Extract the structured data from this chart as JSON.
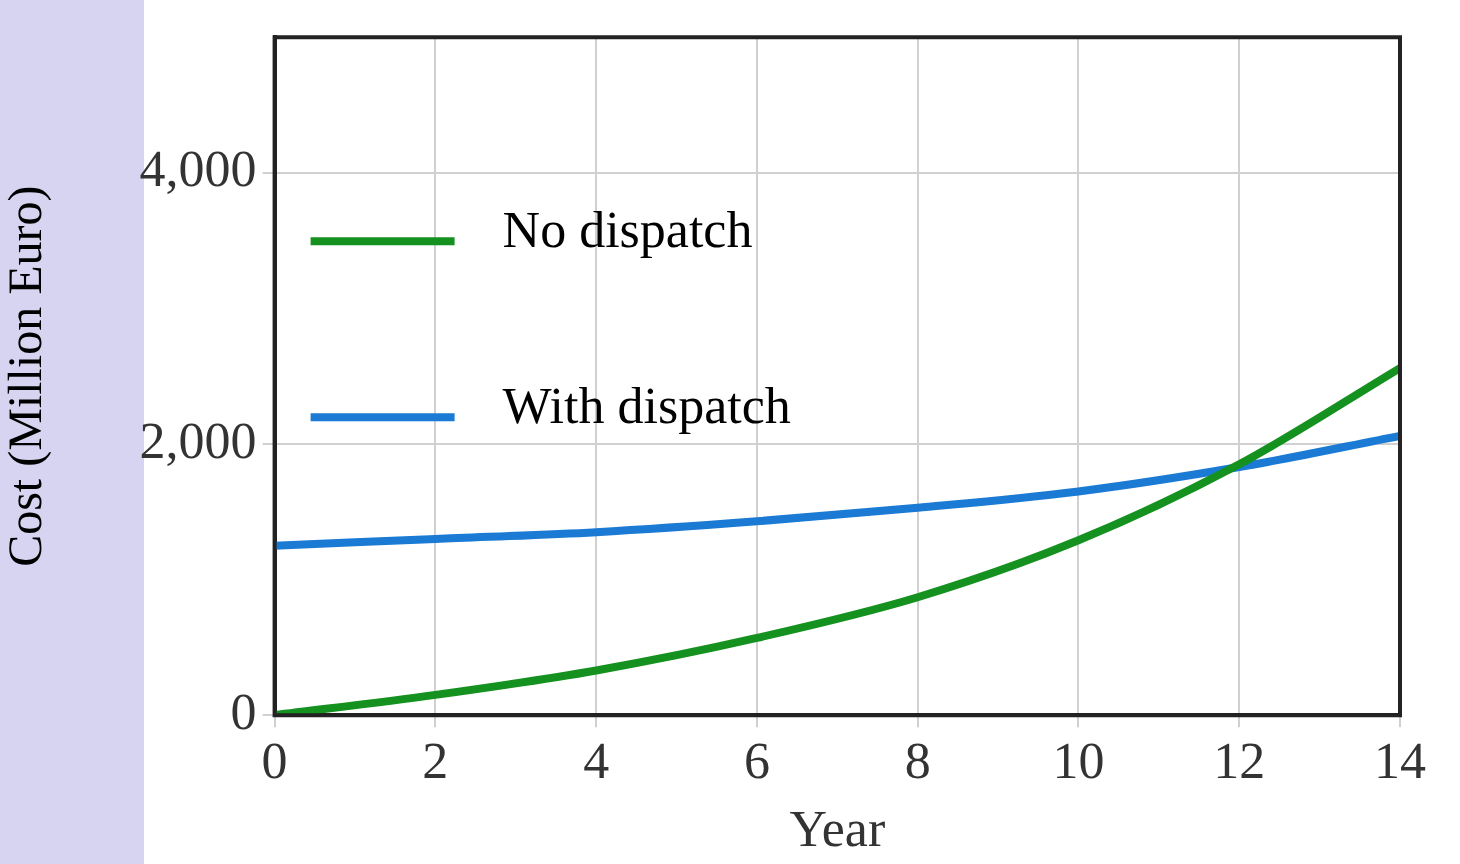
{
  "chart_data": {
    "type": "line",
    "xlabel": "Year",
    "ylabel": "Cost (Million Euro)",
    "x": [
      0,
      2,
      4,
      6,
      8,
      10,
      12,
      14
    ],
    "series": [
      {
        "name": "No dispatch",
        "color": "#14911e",
        "values": [
          0,
          150,
          330,
          570,
          870,
          1290,
          1850,
          2560
        ]
      },
      {
        "name": "With dispatch",
        "color": "#1a7ad4",
        "values": [
          1250,
          1300,
          1350,
          1430,
          1530,
          1650,
          1830,
          2060
        ]
      }
    ],
    "xlim": [
      0,
      14
    ],
    "xticks": [
      0,
      2,
      4,
      6,
      8,
      10,
      12,
      14
    ],
    "ylim": [
      0,
      5000
    ],
    "yticks": [
      {
        "value": 0,
        "label": "0"
      },
      {
        "value": 2000,
        "label": "2,000"
      },
      {
        "value": 4000,
        "label": "4,000"
      }
    ],
    "grid": true,
    "legend": "top left",
    "marker": "none",
    "line_style": "solid"
  }
}
